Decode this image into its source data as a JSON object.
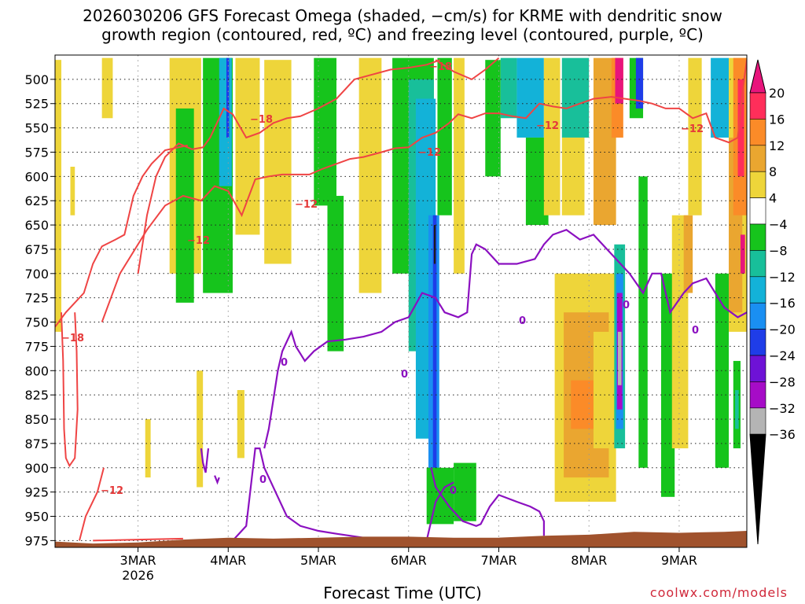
{
  "chart_data": {
    "type": "heatmap",
    "title_lines": [
      "2026030206 GFS Forecast Omega (shaded, −cm/s) for KRME with dendritic snow",
      "growth region (contoured, red, ºC) and freezing level (contoured, purple, ºC)"
    ],
    "xlabel": "Forecast Time (UTC)",
    "credit": "coolwx.com/models",
    "y_ticks": [
      500,
      525,
      550,
      575,
      600,
      625,
      650,
      675,
      700,
      725,
      750,
      775,
      800,
      825,
      850,
      875,
      900,
      925,
      950,
      975
    ],
    "y_range": [
      475,
      982
    ],
    "x_ticks": [
      {
        "label": "3MAR",
        "sub": "2026",
        "t": 1
      },
      {
        "label": "4MAR",
        "sub": "",
        "t": 2
      },
      {
        "label": "5MAR",
        "sub": "",
        "t": 3
      },
      {
        "label": "6MAR",
        "sub": "",
        "t": 4
      },
      {
        "label": "7MAR",
        "sub": "",
        "t": 5
      },
      {
        "label": "8MAR",
        "sub": "",
        "t": 6
      },
      {
        "label": "9MAR",
        "sub": "",
        "t": 7
      }
    ],
    "x_range": [
      0.08,
      7.75
    ],
    "colorbar": {
      "labels": [
        "20",
        "16",
        "12",
        "8",
        "4",
        "−4",
        "−8",
        "−12",
        "−16",
        "−20",
        "−24",
        "−28",
        "−32",
        "−36"
      ],
      "colors": [
        "#ff2e5a",
        "#fb8b28",
        "#eaa630",
        "#eed53a",
        "#ffffff",
        "#16c41c",
        "#18bf9a",
        "#13b2d8",
        "#1a8ff2",
        "#1f3de8",
        "#6e12d6",
        "#a60cc7",
        "#b4b4b4"
      ],
      "top_color": "#e8157c",
      "bottom_color": "#000000"
    },
    "contour_labels_red": [
      "−18",
      "−12"
    ],
    "contour_label_purple": "0",
    "shaded_regions": [
      {
        "t0": 0.08,
        "t1": 0.15,
        "p0": 480,
        "p1": 760,
        "color": "#eed53a"
      },
      {
        "t0": 0.6,
        "t1": 0.72,
        "p0": 478,
        "p1": 540,
        "color": "#eed53a"
      },
      {
        "t0": 0.25,
        "t1": 0.3,
        "p0": 590,
        "p1": 640,
        "color": "#eed53a"
      },
      {
        "t0": 1.35,
        "t1": 1.7,
        "p0": 478,
        "p1": 700,
        "color": "#eed53a"
      },
      {
        "t0": 1.42,
        "t1": 1.62,
        "p0": 530,
        "p1": 730,
        "color": "#16c41c"
      },
      {
        "t0": 1.72,
        "t1": 2.05,
        "p0": 478,
        "p1": 720,
        "color": "#16c41c"
      },
      {
        "t0": 1.9,
        "t1": 2.04,
        "p0": 478,
        "p1": 610,
        "color": "#13b2d8"
      },
      {
        "t0": 1.98,
        "t1": 2.01,
        "p0": 478,
        "p1": 560,
        "color": "#1f3de8"
      },
      {
        "t0": 2.08,
        "t1": 2.35,
        "p0": 478,
        "p1": 660,
        "color": "#eed53a"
      },
      {
        "t0": 2.4,
        "t1": 2.7,
        "p0": 480,
        "p1": 690,
        "color": "#eed53a"
      },
      {
        "t0": 1.65,
        "t1": 1.72,
        "p0": 800,
        "p1": 920,
        "color": "#eed53a"
      },
      {
        "t0": 1.08,
        "t1": 1.14,
        "p0": 850,
        "p1": 910,
        "color": "#eed53a"
      },
      {
        "t0": 2.1,
        "t1": 2.18,
        "p0": 820,
        "p1": 890,
        "color": "#eed53a"
      },
      {
        "t0": 2.95,
        "t1": 3.2,
        "p0": 478,
        "p1": 630,
        "color": "#16c41c"
      },
      {
        "t0": 3.1,
        "t1": 3.28,
        "p0": 620,
        "p1": 780,
        "color": "#16c41c"
      },
      {
        "t0": 3.45,
        "t1": 3.7,
        "p0": 478,
        "p1": 720,
        "color": "#eed53a"
      },
      {
        "t0": 3.82,
        "t1": 4.28,
        "p0": 478,
        "p1": 700,
        "color": "#16c41c"
      },
      {
        "t0": 4.0,
        "t1": 4.28,
        "p0": 500,
        "p1": 780,
        "color": "#18bf9a"
      },
      {
        "t0": 4.08,
        "t1": 4.3,
        "p0": 520,
        "p1": 870,
        "color": "#13b2d8"
      },
      {
        "t0": 4.22,
        "t1": 4.34,
        "p0": 640,
        "p1": 905,
        "color": "#1a8ff2"
      },
      {
        "t0": 4.27,
        "t1": 4.31,
        "p0": 640,
        "p1": 900,
        "color": "#1f3de8"
      },
      {
        "t0": 4.28,
        "t1": 4.3,
        "p0": 650,
        "p1": 690,
        "color": "#1c1c1c"
      },
      {
        "t0": 4.2,
        "t1": 4.5,
        "p0": 900,
        "p1": 958,
        "color": "#16c41c"
      },
      {
        "t0": 4.5,
        "t1": 4.75,
        "p0": 895,
        "p1": 955,
        "color": "#16c41c"
      },
      {
        "t0": 4.32,
        "t1": 4.48,
        "p0": 478,
        "p1": 640,
        "color": "#16c41c"
      },
      {
        "t0": 4.5,
        "t1": 4.62,
        "p0": 478,
        "p1": 700,
        "color": "#eed53a"
      },
      {
        "t0": 4.85,
        "t1": 5.02,
        "p0": 480,
        "p1": 600,
        "color": "#16c41c"
      },
      {
        "t0": 5.02,
        "t1": 5.2,
        "p0": 478,
        "p1": 540,
        "color": "#18bf9a"
      },
      {
        "t0": 5.2,
        "t1": 5.5,
        "p0": 478,
        "p1": 560,
        "color": "#13b2d8"
      },
      {
        "t0": 5.3,
        "t1": 5.55,
        "p0": 560,
        "p1": 650,
        "color": "#16c41c"
      },
      {
        "t0": 5.5,
        "t1": 5.68,
        "p0": 478,
        "p1": 640,
        "color": "#eed53a"
      },
      {
        "t0": 5.7,
        "t1": 6.0,
        "p0": 478,
        "p1": 560,
        "color": "#18bf9a"
      },
      {
        "t0": 5.7,
        "t1": 5.95,
        "p0": 560,
        "p1": 640,
        "color": "#eed53a"
      },
      {
        "t0": 5.62,
        "t1": 6.3,
        "p0": 700,
        "p1": 935,
        "color": "#eed53a"
      },
      {
        "t0": 5.72,
        "t1": 6.22,
        "p0": 740,
        "p1": 910,
        "color": "#eaa630"
      },
      {
        "t0": 5.8,
        "t1": 6.05,
        "p0": 810,
        "p1": 860,
        "color": "#fb8b28"
      },
      {
        "t0": 6.05,
        "t1": 6.25,
        "p0": 760,
        "p1": 880,
        "color": "#eed53a"
      },
      {
        "t0": 6.05,
        "t1": 6.3,
        "p0": 478,
        "p1": 650,
        "color": "#eaa630"
      },
      {
        "t0": 6.25,
        "t1": 6.38,
        "p0": 478,
        "p1": 560,
        "color": "#fb8b28"
      },
      {
        "t0": 6.29,
        "t1": 6.38,
        "p0": 478,
        "p1": 525,
        "color": "#e8157c"
      },
      {
        "t0": 6.28,
        "t1": 6.4,
        "p0": 670,
        "p1": 880,
        "color": "#18bf9a"
      },
      {
        "t0": 6.3,
        "t1": 6.38,
        "p0": 700,
        "p1": 860,
        "color": "#1a8ff2"
      },
      {
        "t0": 6.31,
        "t1": 6.37,
        "p0": 720,
        "p1": 840,
        "color": "#a60cc7"
      },
      {
        "t0": 6.32,
        "t1": 6.36,
        "p0": 760,
        "p1": 815,
        "color": "#b4b4b4"
      },
      {
        "t0": 6.45,
        "t1": 6.6,
        "p0": 478,
        "p1": 540,
        "color": "#16c41c"
      },
      {
        "t0": 6.52,
        "t1": 6.6,
        "p0": 478,
        "p1": 530,
        "color": "#1f3de8"
      },
      {
        "t0": 6.55,
        "t1": 6.65,
        "p0": 600,
        "p1": 900,
        "color": "#16c41c"
      },
      {
        "t0": 6.8,
        "t1": 6.95,
        "p0": 700,
        "p1": 930,
        "color": "#16c41c"
      },
      {
        "t0": 6.92,
        "t1": 7.1,
        "p0": 640,
        "p1": 880,
        "color": "#eed53a"
      },
      {
        "t0": 7.05,
        "t1": 7.15,
        "p0": 640,
        "p1": 720,
        "color": "#eaa630"
      },
      {
        "t0": 7.1,
        "t1": 7.25,
        "p0": 478,
        "p1": 640,
        "color": "#eed53a"
      },
      {
        "t0": 7.35,
        "t1": 7.55,
        "p0": 478,
        "p1": 560,
        "color": "#13b2d8"
      },
      {
        "t0": 7.4,
        "t1": 7.55,
        "p0": 700,
        "p1": 900,
        "color": "#16c41c"
      },
      {
        "t0": 7.55,
        "t1": 7.75,
        "p0": 478,
        "p1": 760,
        "color": "#eed53a"
      },
      {
        "t0": 7.55,
        "t1": 7.7,
        "p0": 560,
        "p1": 740,
        "color": "#eaa630"
      },
      {
        "t0": 7.6,
        "t1": 7.75,
        "p0": 478,
        "p1": 640,
        "color": "#fb8b28"
      },
      {
        "t0": 7.65,
        "t1": 7.72,
        "p0": 500,
        "p1": 600,
        "color": "#ff2e5a"
      },
      {
        "t0": 7.68,
        "t1": 7.73,
        "p0": 660,
        "p1": 700,
        "color": "#e8157c"
      },
      {
        "t0": 7.6,
        "t1": 7.68,
        "p0": 790,
        "p1": 880,
        "color": "#16c41c"
      },
      {
        "t0": 7.62,
        "t1": 7.66,
        "p0": 820,
        "p1": 860,
        "color": "#18bf9a"
      }
    ],
    "terrain_color": "#a0522d",
    "terrain_surface": [
      [
        0.08,
        976
      ],
      [
        0.5,
        978
      ],
      [
        1.0,
        977
      ],
      [
        1.5,
        974
      ],
      [
        2.0,
        972
      ],
      [
        2.5,
        973
      ],
      [
        3.0,
        972
      ],
      [
        3.5,
        971
      ],
      [
        4.0,
        971
      ],
      [
        4.5,
        972
      ],
      [
        5.0,
        972
      ],
      [
        5.5,
        970
      ],
      [
        6.0,
        969
      ],
      [
        6.5,
        966
      ],
      [
        7.0,
        967
      ],
      [
        7.5,
        966
      ],
      [
        7.75,
        965
      ]
    ],
    "red_contours": [
      [
        [
          1.0,
          700
        ],
        [
          1.1,
          640
        ],
        [
          1.2,
          600
        ],
        [
          1.3,
          580
        ],
        [
          1.45,
          566
        ],
        [
          1.6,
          572
        ],
        [
          1.72,
          570
        ],
        [
          1.8,
          560
        ],
        [
          1.95,
          530
        ],
        [
          2.05,
          536
        ],
        [
          2.2,
          560
        ],
        [
          2.35,
          555
        ],
        [
          2.5,
          545
        ],
        [
          2.65,
          540
        ],
        [
          2.8,
          538
        ],
        [
          3.0,
          530
        ],
        [
          3.2,
          520
        ],
        [
          3.4,
          500
        ],
        [
          3.6,
          495
        ],
        [
          3.8,
          490
        ],
        [
          4.0,
          488
        ],
        [
          4.2,
          485
        ],
        [
          4.35,
          480
        ]
      ],
      [
        [
          0.08,
          755
        ],
        [
          0.2,
          740
        ],
        [
          0.4,
          720
        ],
        [
          0.5,
          690
        ],
        [
          0.6,
          672
        ],
        [
          0.75,
          665
        ],
        [
          0.85,
          660
        ],
        [
          0.95,
          620
        ],
        [
          1.05,
          600
        ],
        [
          1.15,
          587
        ],
        [
          1.3,
          573
        ],
        [
          1.45,
          570
        ],
        [
          1.55,
          568
        ]
      ],
      [
        [
          0.6,
          750
        ],
        [
          0.8,
          700
        ],
        [
          1.1,
          655
        ],
        [
          1.3,
          630
        ],
        [
          1.5,
          620
        ],
        [
          1.7,
          625
        ],
        [
          1.85,
          610
        ],
        [
          2.0,
          615
        ],
        [
          2.15,
          640
        ],
        [
          2.3,
          603
        ],
        [
          2.45,
          600
        ],
        [
          2.6,
          598
        ],
        [
          2.9,
          598
        ],
        [
          3.05,
          592
        ],
        [
          3.2,
          587
        ],
        [
          3.35,
          582
        ],
        [
          3.5,
          580
        ],
        [
          3.7,
          575
        ],
        [
          3.85,
          571
        ],
        [
          4.0,
          570
        ],
        [
          4.15,
          560
        ],
        [
          4.3,
          555
        ],
        [
          4.45,
          545
        ],
        [
          4.55,
          536
        ],
        [
          4.7,
          540
        ],
        [
          4.85,
          535
        ],
        [
          5.0,
          535
        ],
        [
          5.15,
          538
        ],
        [
          5.3,
          540
        ],
        [
          5.45,
          525
        ],
        [
          5.6,
          528
        ],
        [
          5.75,
          530
        ],
        [
          5.9,
          525
        ],
        [
          6.05,
          520
        ],
        [
          6.25,
          518
        ],
        [
          6.4,
          520
        ],
        [
          6.55,
          522
        ],
        [
          6.7,
          525
        ],
        [
          6.85,
          530
        ],
        [
          7.0,
          530
        ],
        [
          7.15,
          540
        ],
        [
          7.3,
          535
        ],
        [
          7.4,
          560
        ],
        [
          7.55,
          565
        ],
        [
          7.65,
          560
        ],
        [
          7.72,
          500
        ],
        [
          7.75,
          480
        ]
      ],
      [
        [
          0.15,
          740
        ],
        [
          0.17,
          790
        ],
        [
          0.18,
          860
        ],
        [
          0.2,
          890
        ],
        [
          0.24,
          898
        ],
        [
          0.3,
          890
        ],
        [
          0.33,
          840
        ],
        [
          0.32,
          780
        ],
        [
          0.3,
          740
        ]
      ],
      [
        [
          0.35,
          975
        ],
        [
          0.42,
          950
        ],
        [
          0.55,
          925
        ],
        [
          0.62,
          900
        ]
      ],
      [
        [
          0.5,
          975
        ],
        [
          1.0,
          974
        ],
        [
          1.5,
          973
        ]
      ],
      [
        [
          4.3,
          480
        ],
        [
          4.5,
          492
        ],
        [
          4.7,
          500
        ],
        [
          4.85,
          490
        ],
        [
          5.0,
          478
        ]
      ]
    ],
    "purple_contours": [
      [
        [
          1.65,
          975
        ],
        [
          2.2,
          974
        ],
        [
          2.6,
          976
        ],
        [
          3.3,
          974
        ]
      ],
      [
        [
          1.7,
          880
        ],
        [
          1.72,
          895
        ],
        [
          1.75,
          905
        ],
        [
          1.78,
          880
        ]
      ],
      [
        [
          1.85,
          908
        ],
        [
          1.88,
          915
        ],
        [
          1.9,
          910
        ]
      ],
      [
        [
          2.05,
          975
        ],
        [
          2.2,
          960
        ],
        [
          2.3,
          880
        ],
        [
          2.35,
          880
        ],
        [
          2.4,
          900
        ],
        [
          2.55,
          930
        ],
        [
          2.65,
          950
        ],
        [
          2.8,
          960
        ],
        [
          3.0,
          965
        ],
        [
          3.2,
          968
        ],
        [
          3.5,
          972
        ],
        [
          3.7,
          974
        ]
      ],
      [
        [
          2.4,
          880
        ],
        [
          2.45,
          860
        ],
        [
          2.5,
          830
        ],
        [
          2.55,
          800
        ],
        [
          2.6,
          780
        ],
        [
          2.7,
          760
        ],
        [
          2.75,
          775
        ],
        [
          2.85,
          790
        ],
        [
          2.95,
          780
        ],
        [
          3.1,
          770
        ],
        [
          3.3,
          768
        ],
        [
          3.5,
          765
        ],
        [
          3.7,
          760
        ],
        [
          3.85,
          750
        ],
        [
          4.0,
          745
        ],
        [
          4.15,
          720
        ],
        [
          4.3,
          725
        ],
        [
          4.4,
          740
        ],
        [
          4.55,
          745
        ],
        [
          4.65,
          740
        ],
        [
          4.7,
          680
        ],
        [
          4.75,
          670
        ],
        [
          4.85,
          675
        ],
        [
          5.0,
          690
        ],
        [
          5.2,
          690
        ],
        [
          5.4,
          685
        ],
        [
          5.5,
          670
        ],
        [
          5.6,
          660
        ],
        [
          5.75,
          655
        ],
        [
          5.9,
          665
        ],
        [
          6.05,
          660
        ],
        [
          6.15,
          670
        ],
        [
          6.25,
          680
        ],
        [
          6.35,
          690
        ],
        [
          6.45,
          700
        ],
        [
          6.6,
          720
        ],
        [
          6.7,
          700
        ],
        [
          6.8,
          700
        ],
        [
          6.9,
          740
        ],
        [
          7.05,
          720
        ],
        [
          7.15,
          710
        ],
        [
          7.3,
          705
        ],
        [
          7.5,
          735
        ],
        [
          7.65,
          745
        ],
        [
          7.75,
          740
        ]
      ],
      [
        [
          4.25,
          900
        ],
        [
          4.3,
          920
        ],
        [
          4.45,
          940
        ],
        [
          4.6,
          955
        ],
        [
          4.75,
          960
        ],
        [
          4.8,
          958
        ],
        [
          4.9,
          940
        ],
        [
          5.0,
          928
        ],
        [
          5.2,
          935
        ],
        [
          5.35,
          940
        ],
        [
          5.45,
          945
        ],
        [
          5.5,
          955
        ],
        [
          5.5,
          970
        ]
      ],
      [
        [
          4.2,
          975
        ],
        [
          4.3,
          935
        ],
        [
          4.4,
          920
        ],
        [
          4.5,
          915
        ]
      ]
    ]
  }
}
